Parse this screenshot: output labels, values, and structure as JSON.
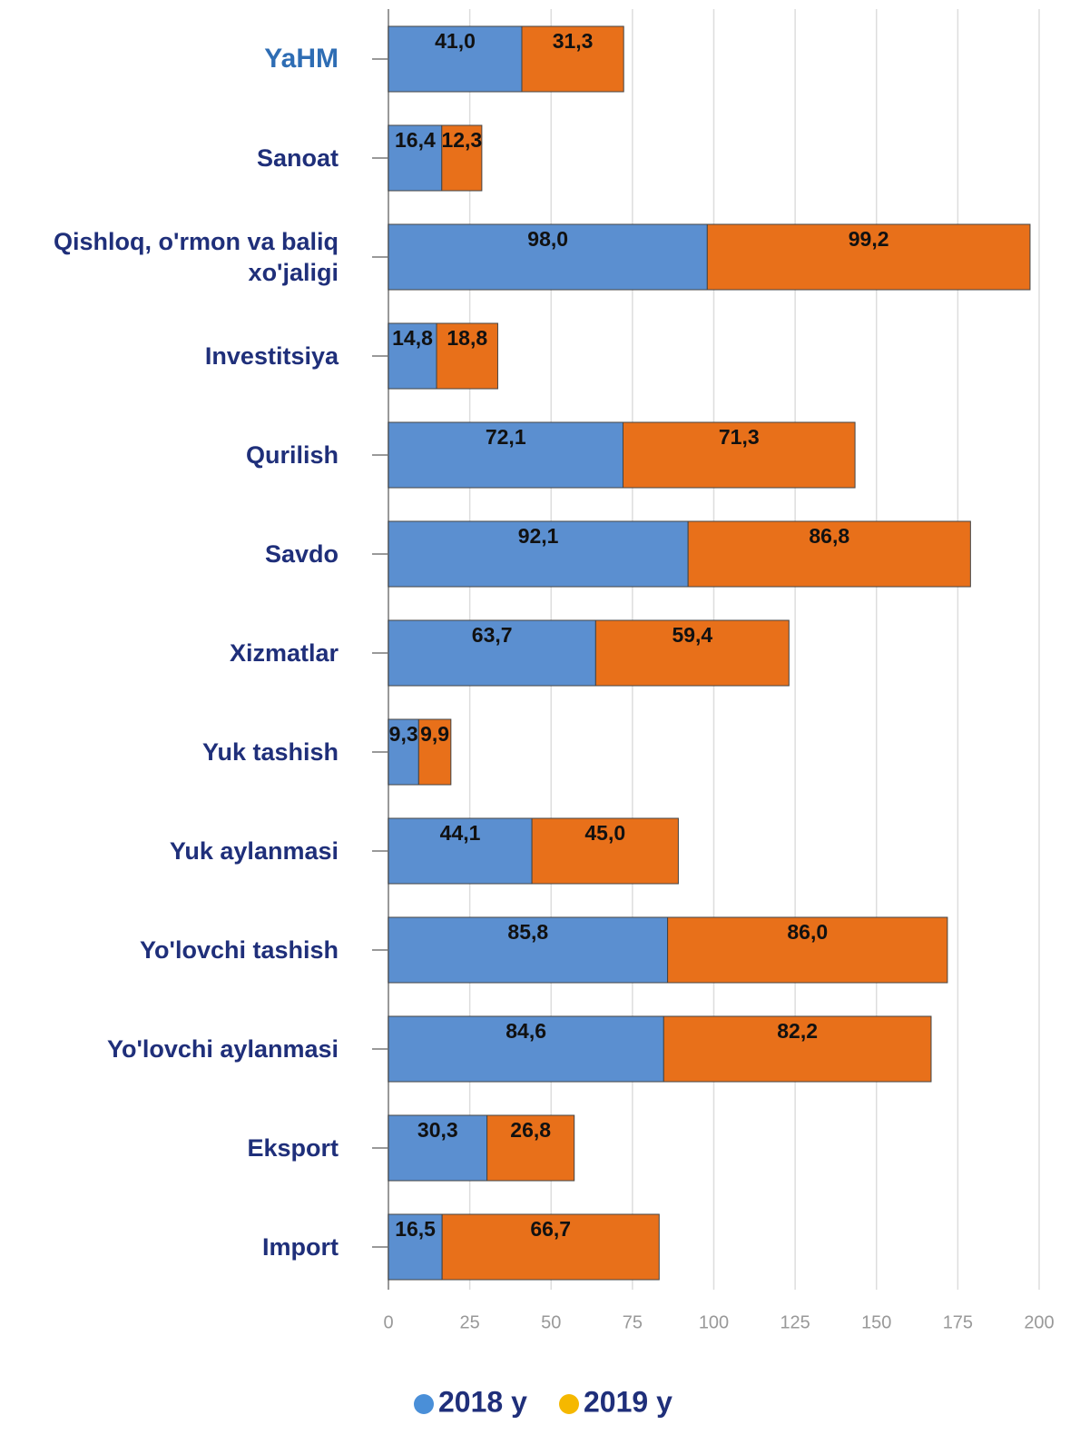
{
  "chart_data": {
    "type": "stacked_barh",
    "categories": [
      "YaHM",
      "Sanoat",
      "Qishloq, o'rmon va baliq xo'jaligi",
      "Investitsiya",
      "Qurilish",
      "Savdo",
      "Xizmatlar",
      "Yuk tashish",
      "Yuk aylanmasi",
      "Yo'lovchi tashish",
      "Yo'lovchi aylanmasi",
      "Eksport",
      "Import"
    ],
    "series": [
      {
        "name": "2018 y",
        "color": "#5b8fd0",
        "legend_color": "#4a8fd8",
        "values": [
          41.0,
          16.4,
          98.0,
          14.8,
          72.1,
          92.1,
          63.7,
          9.3,
          44.1,
          85.8,
          84.6,
          30.3,
          16.5
        ],
        "value_labels": [
          "41,0",
          "16,4",
          "98,0",
          "14,8",
          "72,1",
          "92,1",
          "63,7",
          "9,3",
          "44,1",
          "85,8",
          "84,6",
          "30,3",
          "16,5"
        ]
      },
      {
        "name": "2019 y",
        "color": "#e8701a",
        "legend_color": "#f5b800",
        "values": [
          31.3,
          12.3,
          99.2,
          18.8,
          71.3,
          86.8,
          59.4,
          9.9,
          45.0,
          86.0,
          82.2,
          26.8,
          66.7
        ],
        "value_labels": [
          "31,3",
          "12,3",
          "99,2",
          "18,8",
          "71,3",
          "86,8",
          "59,4",
          "9,9",
          "45,0",
          "86,0",
          "82,2",
          "26,8",
          "66,7"
        ]
      }
    ],
    "xlim": [
      0,
      200
    ],
    "xticks": [
      0,
      25,
      50,
      75,
      100,
      125,
      150,
      175,
      200
    ],
    "grid": true
  }
}
